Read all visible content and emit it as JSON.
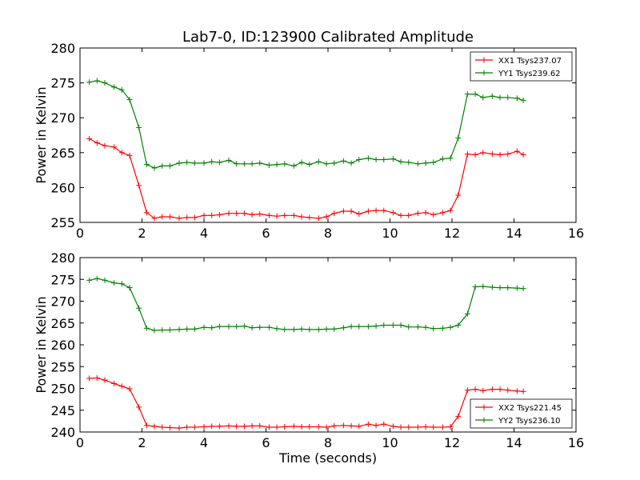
{
  "figure": {
    "title": "Lab7-0, ID:123900 Calibrated Amplitude",
    "xlabel": "Time (seconds)"
  },
  "chart_data": [
    {
      "type": "line",
      "ylabel": "Power in Kelvin",
      "xlim": [
        0,
        16
      ],
      "ylim": [
        255,
        280
      ],
      "xticks": [
        0,
        2,
        4,
        6,
        8,
        10,
        12,
        14,
        16
      ],
      "yticks": [
        255,
        260,
        265,
        270,
        275,
        280
      ],
      "legend": "top-right",
      "series": [
        {
          "name": "XX1 Tsys237.07",
          "color": "#ff0000",
          "x": [
            0.3,
            0.55,
            0.8,
            1.1,
            1.35,
            1.6,
            1.9,
            2.15,
            2.4,
            2.65,
            2.9,
            3.2,
            3.45,
            3.7,
            4.0,
            4.25,
            4.5,
            4.8,
            5.05,
            5.3,
            5.55,
            5.8,
            6.1,
            6.35,
            6.6,
            6.9,
            7.15,
            7.4,
            7.7,
            7.95,
            8.2,
            8.5,
            8.75,
            9.0,
            9.3,
            9.55,
            9.8,
            10.1,
            10.35,
            10.6,
            10.9,
            11.15,
            11.4,
            11.7,
            11.95,
            12.2,
            12.5,
            12.75,
            13.0,
            13.3,
            13.55,
            13.8,
            14.1,
            14.3
          ],
          "y": [
            267.0,
            266.4,
            266.0,
            265.8,
            265.0,
            264.6,
            260.3,
            256.4,
            255.6,
            255.8,
            255.8,
            255.6,
            255.7,
            255.7,
            256.0,
            256.0,
            256.1,
            256.3,
            256.3,
            256.3,
            256.1,
            256.2,
            256.0,
            255.9,
            256.0,
            256.0,
            255.8,
            255.7,
            255.6,
            255.8,
            256.3,
            256.6,
            256.6,
            256.2,
            256.6,
            256.7,
            256.7,
            256.4,
            256.0,
            256.0,
            256.3,
            256.4,
            256.1,
            256.4,
            256.7,
            258.9,
            264.8,
            264.7,
            265.0,
            264.8,
            264.7,
            264.8,
            265.2,
            264.7
          ]
        },
        {
          "name": "YY1 Tsys239.62",
          "color": "#008000",
          "x": [
            0.3,
            0.55,
            0.8,
            1.1,
            1.35,
            1.6,
            1.9,
            2.15,
            2.4,
            2.65,
            2.9,
            3.2,
            3.45,
            3.7,
            4.0,
            4.25,
            4.5,
            4.8,
            5.05,
            5.3,
            5.55,
            5.8,
            6.1,
            6.35,
            6.6,
            6.9,
            7.15,
            7.4,
            7.7,
            7.95,
            8.2,
            8.5,
            8.75,
            9.0,
            9.3,
            9.55,
            9.8,
            10.1,
            10.35,
            10.6,
            10.9,
            11.15,
            11.4,
            11.7,
            11.95,
            12.2,
            12.5,
            12.75,
            13.0,
            13.3,
            13.55,
            13.8,
            14.1,
            14.3
          ],
          "y": [
            275.1,
            275.3,
            275.0,
            274.4,
            274.0,
            272.6,
            268.6,
            263.3,
            262.8,
            263.1,
            263.1,
            263.5,
            263.6,
            263.5,
            263.5,
            263.7,
            263.6,
            263.9,
            263.4,
            263.4,
            263.4,
            263.5,
            263.2,
            263.3,
            263.4,
            263.1,
            263.6,
            263.3,
            263.7,
            263.4,
            263.5,
            263.8,
            263.5,
            264.0,
            264.2,
            264.0,
            264.0,
            264.1,
            263.7,
            263.6,
            263.4,
            263.5,
            263.6,
            264.1,
            264.2,
            267.1,
            273.4,
            273.4,
            272.9,
            273.1,
            272.9,
            272.9,
            272.8,
            272.5
          ]
        }
      ]
    },
    {
      "type": "line",
      "ylabel": "Power in Kelvin",
      "xlabel": "Time (seconds)",
      "xlim": [
        0,
        16
      ],
      "ylim": [
        240,
        280
      ],
      "xticks": [
        0,
        2,
        4,
        6,
        8,
        10,
        12,
        14,
        16
      ],
      "yticks": [
        240,
        245,
        250,
        255,
        260,
        265,
        270,
        275,
        280
      ],
      "legend": "bottom-right",
      "series": [
        {
          "name": "XX2 Tsys221.45",
          "color": "#ff0000",
          "x": [
            0.3,
            0.55,
            0.8,
            1.1,
            1.35,
            1.6,
            1.9,
            2.15,
            2.4,
            2.65,
            2.9,
            3.2,
            3.45,
            3.7,
            4.0,
            4.25,
            4.5,
            4.8,
            5.05,
            5.3,
            5.55,
            5.8,
            6.1,
            6.35,
            6.6,
            6.9,
            7.15,
            7.4,
            7.7,
            7.95,
            8.2,
            8.5,
            8.75,
            9.0,
            9.3,
            9.55,
            9.8,
            10.1,
            10.35,
            10.6,
            10.9,
            11.15,
            11.4,
            11.7,
            11.95,
            12.2,
            12.5,
            12.75,
            13.0,
            13.3,
            13.55,
            13.8,
            14.1,
            14.3
          ],
          "y": [
            252.3,
            252.4,
            251.9,
            251.1,
            250.5,
            249.9,
            245.7,
            241.5,
            241.3,
            241.1,
            241.0,
            240.9,
            241.1,
            241.1,
            241.2,
            241.3,
            241.3,
            241.4,
            241.3,
            241.3,
            241.4,
            241.4,
            241.1,
            241.1,
            241.2,
            241.3,
            241.2,
            241.2,
            241.2,
            241.1,
            241.4,
            241.5,
            241.4,
            241.3,
            241.8,
            241.5,
            241.8,
            241.3,
            241.1,
            241.1,
            241.1,
            241.2,
            241.1,
            241.1,
            241.2,
            243.6,
            249.6,
            249.8,
            249.5,
            249.8,
            249.8,
            249.6,
            249.4,
            249.3
          ]
        },
        {
          "name": "YY2 Tsys236.10",
          "color": "#008000",
          "x": [
            0.3,
            0.55,
            0.8,
            1.1,
            1.35,
            1.6,
            1.9,
            2.15,
            2.4,
            2.65,
            2.9,
            3.2,
            3.45,
            3.7,
            4.0,
            4.25,
            4.5,
            4.8,
            5.05,
            5.3,
            5.55,
            5.8,
            6.1,
            6.35,
            6.6,
            6.9,
            7.15,
            7.4,
            7.7,
            7.95,
            8.2,
            8.5,
            8.75,
            9.0,
            9.3,
            9.55,
            9.8,
            10.1,
            10.35,
            10.6,
            10.9,
            11.15,
            11.4,
            11.7,
            11.95,
            12.2,
            12.5,
            12.75,
            13.0,
            13.3,
            13.55,
            13.8,
            14.1,
            14.3
          ],
          "y": [
            274.8,
            275.2,
            274.8,
            274.2,
            274.0,
            273.1,
            268.4,
            263.8,
            263.3,
            263.4,
            263.4,
            263.5,
            263.6,
            263.6,
            264.0,
            263.9,
            264.2,
            264.2,
            264.2,
            264.3,
            263.9,
            264.0,
            264.0,
            263.7,
            263.5,
            263.5,
            263.6,
            263.5,
            263.5,
            263.6,
            263.6,
            263.9,
            264.2,
            264.2,
            264.2,
            264.3,
            264.5,
            264.5,
            264.5,
            264.1,
            264.1,
            264.0,
            263.7,
            263.8,
            264.0,
            264.5,
            267.1,
            273.3,
            273.4,
            273.2,
            273.1,
            273.1,
            273.0,
            272.9
          ]
        }
      ]
    }
  ]
}
